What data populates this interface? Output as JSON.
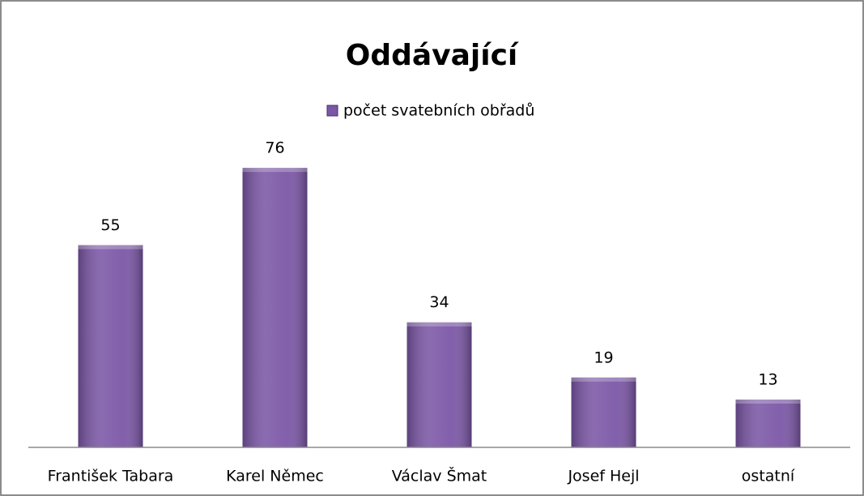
{
  "chart_data": {
    "type": "bar",
    "title": "Oddávající",
    "categories": [
      "František Tabara",
      "Karel Němec",
      "Václav Šmat",
      "Josef Hejl",
      "ostatní"
    ],
    "series": [
      {
        "name": "počet svatebních obřadů",
        "color": "#7b57a6",
        "values": [
          55,
          76,
          34,
          19,
          13
        ]
      }
    ],
    "ylim": [
      0,
      80
    ],
    "grid": false
  }
}
